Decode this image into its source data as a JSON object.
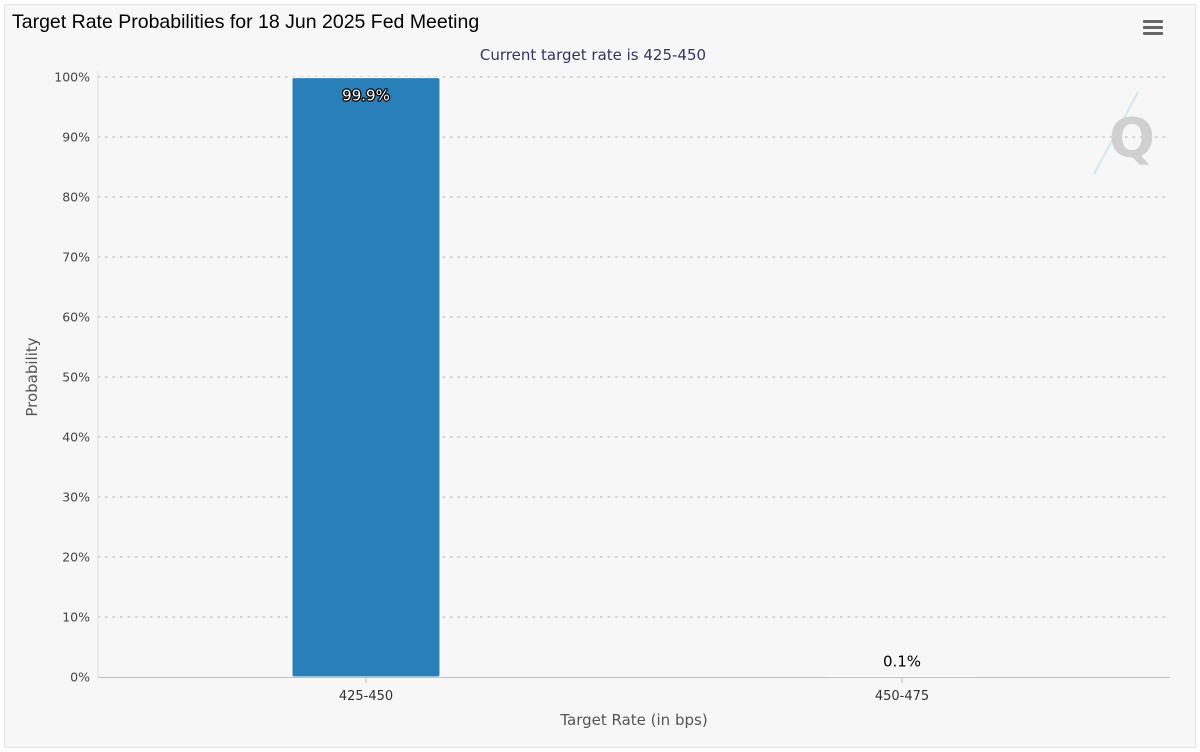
{
  "header": {
    "title": "Target Rate Probabilities for 18 Jun 2025 Fed Meeting",
    "menu_icon": "hamburger-menu-icon"
  },
  "watermark": {
    "text": "Q",
    "icon": "quikstrike-logo-icon"
  },
  "chart_data": {
    "type": "bar",
    "subtitle": "Current target rate is 425-450",
    "categories": [
      "425-450",
      "450-475"
    ],
    "values": [
      99.9,
      0.1
    ],
    "data_labels": [
      "99.9%",
      "0.1%"
    ],
    "xlabel": "Target Rate (in bps)",
    "ylabel": "Probability",
    "ylim": [
      0,
      100
    ],
    "yticks": [
      0,
      10,
      20,
      30,
      40,
      50,
      60,
      70,
      80,
      90,
      100
    ],
    "ytick_suffix": "%",
    "grid": true,
    "legend": "none",
    "bar_color": "#2980b9",
    "subtitle_color": "#333366"
  }
}
